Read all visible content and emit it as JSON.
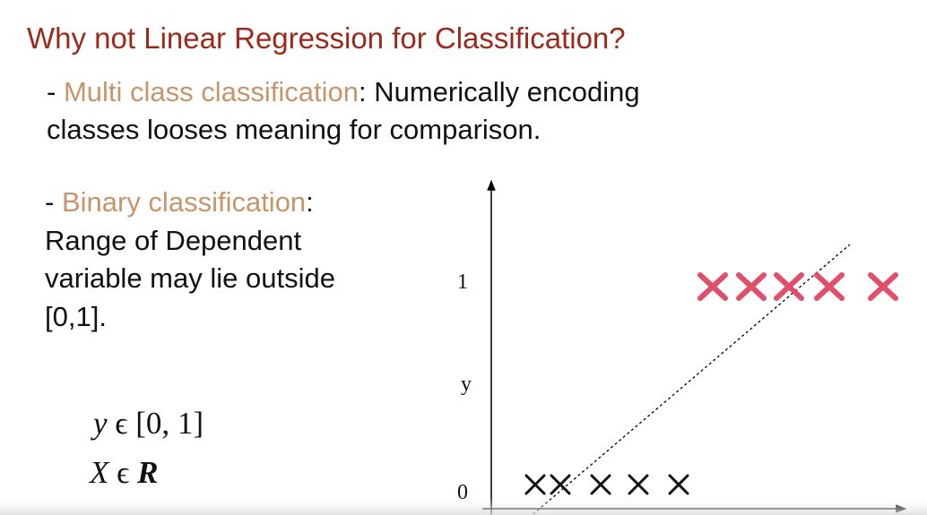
{
  "header": {
    "title": "Why not Linear Regression for Classification?"
  },
  "bullets": [
    {
      "dash": "-",
      "highlight": "Multi class classification",
      "lines": [
        ": Numerically encoding",
        "classes looses meaning for comparison."
      ]
    },
    {
      "dash": "-",
      "highlight": "Binary classification",
      "lines": [
        ":",
        "Range of Dependent",
        "variable may lie outside",
        "[0,1]."
      ]
    }
  ],
  "formulas": [
    {
      "variable": "y",
      "relation": "ϵ",
      "set": "[0, 1]"
    },
    {
      "variable": "X",
      "relation": "ϵ",
      "set": "R"
    }
  ],
  "plot": {
    "top_label": "1",
    "axis_label": "y",
    "bottom_label": "0"
  }
}
